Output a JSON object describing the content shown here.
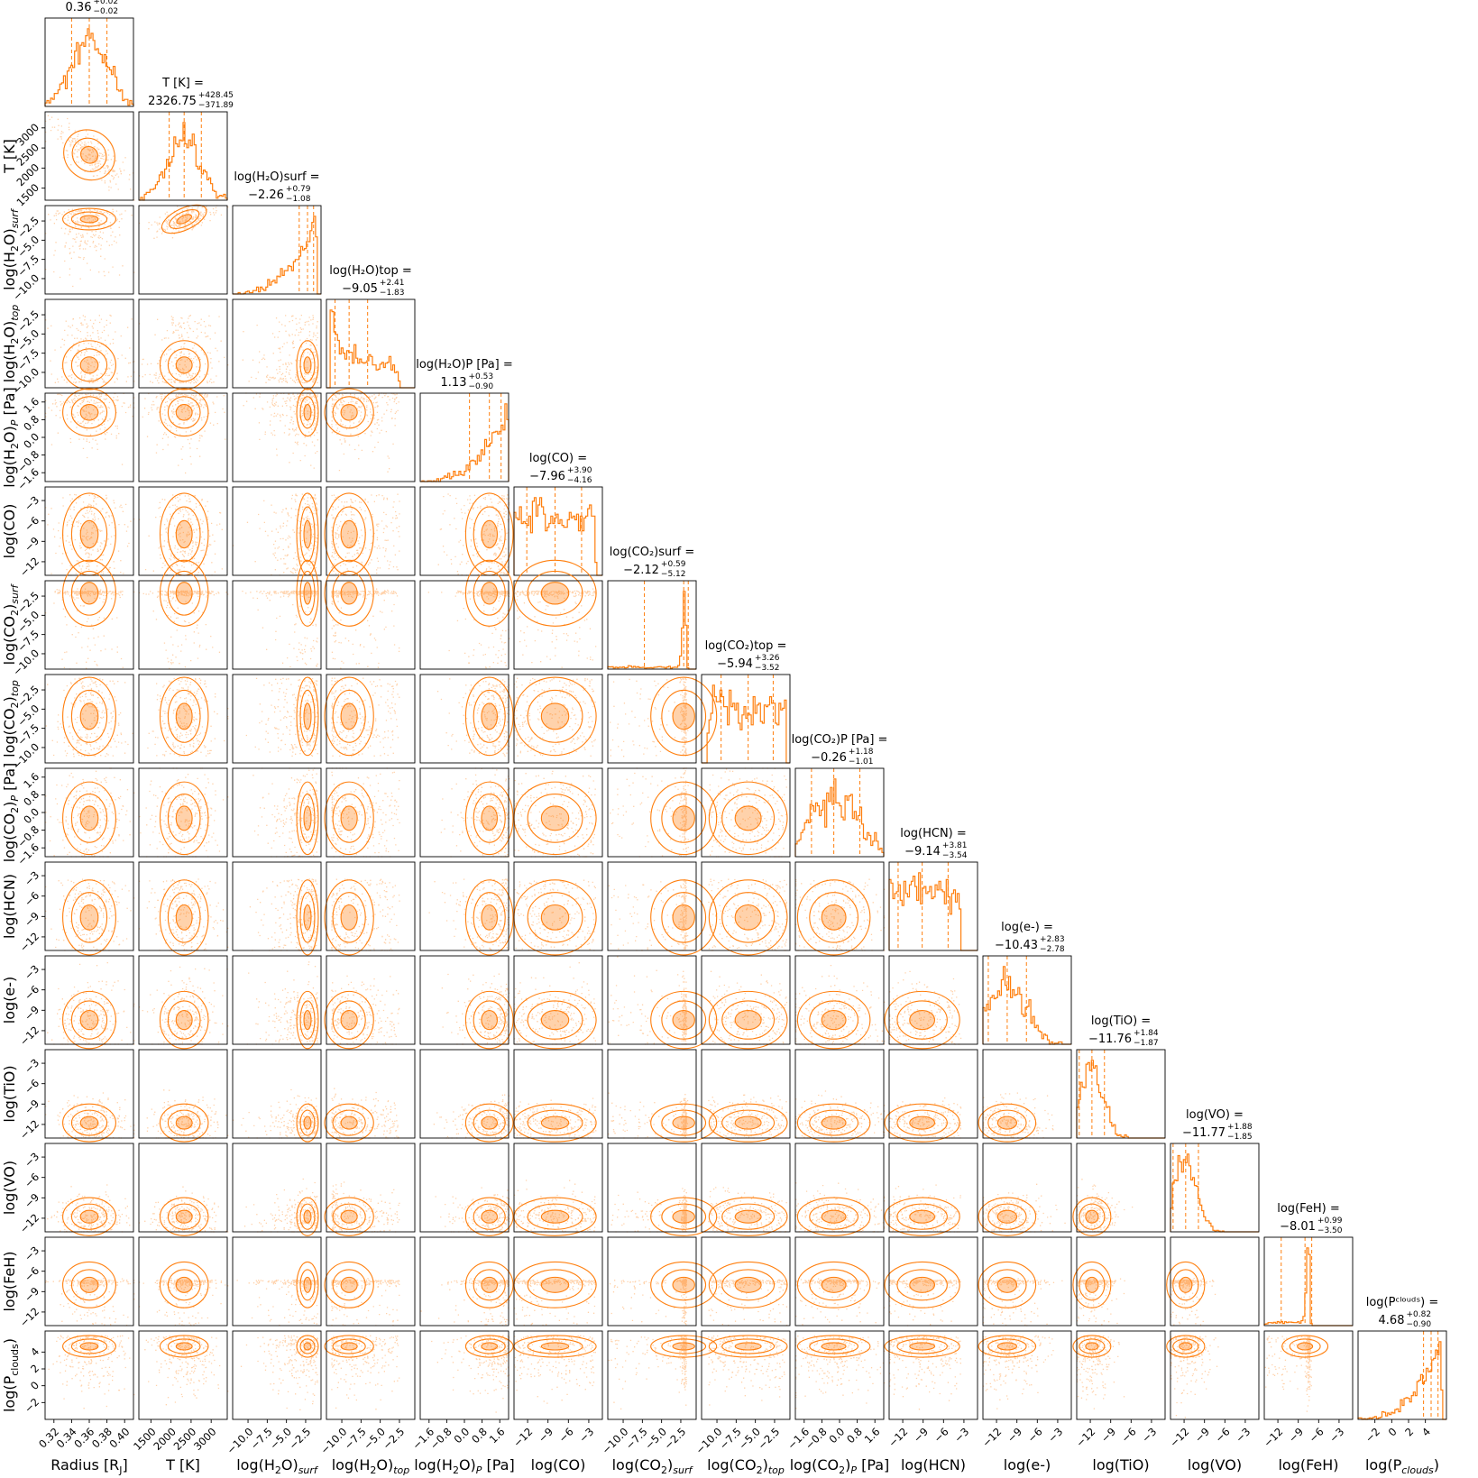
{
  "accent_color": "#ff7f0e",
  "chart_data": {
    "type": "corner",
    "grid": false,
    "legend": "none",
    "parameters": [
      {
        "axis_label": "Radius [R$_J$]",
        "axis_label_main": "Radius [R",
        "axis_label_sub": "J",
        "axis_label_tail": "]",
        "title_name": "",
        "median": "0.36",
        "err_plus": "+0.02",
        "err_minus": "−0.02",
        "range": [
          0.31,
          0.41
        ],
        "ticks": [
          "0.32",
          "0.34",
          "0.36",
          "0.38",
          "0.40"
        ],
        "tick_values": [
          0.32,
          0.34,
          0.36,
          0.38,
          0.4
        ],
        "q16": 0.34,
        "q50": 0.36,
        "q84": 0.38,
        "hist_shape": "flat-gaussian",
        "corr_with_T": -0.8
      },
      {
        "axis_label": "T [K]",
        "axis_label_main": "T [K]",
        "axis_label_sub": "",
        "axis_label_tail": "",
        "title_name": "T [K] =",
        "median": "2326.75",
        "err_plus": "+428.45",
        "err_minus": "−371.89",
        "range": [
          1200,
          3400
        ],
        "ticks": [
          "1500",
          "2000",
          "2500",
          "3000"
        ],
        "tick_values": [
          1500,
          2000,
          2500,
          3000
        ],
        "q16": 1955,
        "q50": 2327,
        "q84": 2755,
        "hist_shape": "gaussian"
      },
      {
        "axis_label": "log(H$_2$O)$_{surf}$",
        "axis_label_main": "log(H",
        "axis_label_sub": "2",
        "axis_label_tail": "O)",
        "axis_label_sub2": "surf",
        "title_name": "log(H₂O)surf =",
        "median": "−2.26",
        "err_plus": "+0.79",
        "err_minus": "−1.08",
        "range": [
          -12,
          -0.5
        ],
        "ticks": [
          "−10.0",
          "−7.5",
          "−5.0",
          "−2.5"
        ],
        "tick_values": [
          -10,
          -7.5,
          -5,
          -2.5
        ],
        "q16": -3.34,
        "q50": -2.26,
        "q84": -1.47,
        "hist_shape": "rising-right"
      },
      {
        "axis_label": "log(H$_2$O)$_{top}$",
        "axis_label_main": "log(H",
        "axis_label_sub": "2",
        "axis_label_tail": "O)",
        "axis_label_sub2": "top",
        "title_name": "log(H₂O)top =",
        "median": "−9.05",
        "err_plus": "+2.41",
        "err_minus": "−1.83",
        "range": [
          -12,
          -0.5
        ],
        "ticks": [
          "−10.0",
          "−7.5",
          "−5.0",
          "−2.5"
        ],
        "tick_values": [
          -10,
          -7.5,
          -5,
          -2.5
        ],
        "q16": -10.88,
        "q50": -9.05,
        "q84": -6.64,
        "hist_shape": "falling-left"
      },
      {
        "axis_label": "log(H$_2$O)$_P$ [Pa]",
        "axis_label_main": "log(H",
        "axis_label_sub": "2",
        "axis_label_tail": "O)",
        "axis_label_sub2": "P",
        "axis_label_end": " [Pa]",
        "title_name": "log(H₂O)P [Pa] =",
        "median": "1.13",
        "err_plus": "+0.53",
        "err_minus": "−0.90",
        "range": [
          -2,
          2
        ],
        "ticks": [
          "−1.6",
          "−0.8",
          "0.0",
          "0.8",
          "1.6"
        ],
        "tick_values": [
          -1.6,
          -0.8,
          0,
          0.8,
          1.6
        ],
        "q16": 0.23,
        "q50": 1.13,
        "q84": 1.66,
        "hist_shape": "rising-right"
      },
      {
        "axis_label": "log(CO)",
        "axis_label_main": "log(CO)",
        "axis_label_sub": "",
        "axis_label_tail": "",
        "title_name": "log(CO) =",
        "median": "−7.96",
        "err_plus": "+3.90",
        "err_minus": "−4.16",
        "range": [
          -14,
          -1
        ],
        "ticks": [
          "−12",
          "−9",
          "−6",
          "−3"
        ],
        "tick_values": [
          -12,
          -9,
          -6,
          -3
        ],
        "q16": -12.12,
        "q50": -7.96,
        "q84": -4.06,
        "hist_shape": "flat"
      },
      {
        "axis_label": "log(CO$_2$)$_{surf}$",
        "axis_label_main": "log(CO",
        "axis_label_sub": "2",
        "axis_label_tail": ")",
        "axis_label_sub2": "surf",
        "title_name": "log(CO₂)surf =",
        "median": "−2.12",
        "err_plus": "+0.59",
        "err_minus": "−5.12",
        "range": [
          -12,
          -0.5
        ],
        "ticks": [
          "−10.0",
          "−7.5",
          "−5.0",
          "−2.5"
        ],
        "tick_values": [
          -10,
          -7.5,
          -5,
          -2.5
        ],
        "q16": -7.24,
        "q50": -2.12,
        "q84": -1.53,
        "hist_shape": "spike-right"
      },
      {
        "axis_label": "log(CO$_2$)$_{top}$",
        "axis_label_main": "log(CO",
        "axis_label_sub": "2",
        "axis_label_tail": ")",
        "axis_label_sub2": "top",
        "title_name": "log(CO₂)top =",
        "median": "−5.94",
        "err_plus": "+3.26",
        "err_minus": "−3.52",
        "range": [
          -12,
          -0.5
        ],
        "ticks": [
          "−10.0",
          "−7.5",
          "−5.0",
          "−2.5"
        ],
        "tick_values": [
          -10,
          -7.5,
          -5,
          -2.5
        ],
        "q16": -9.46,
        "q50": -5.94,
        "q84": -2.68,
        "hist_shape": "flat"
      },
      {
        "axis_label": "log(CO$_2$)$_P$ [Pa]",
        "axis_label_main": "log(CO",
        "axis_label_sub": "2",
        "axis_label_tail": ")",
        "axis_label_sub2": "P",
        "axis_label_end": " [Pa]",
        "title_name": "log(CO₂)P [Pa] =",
        "median": "−0.26",
        "err_plus": "+1.18",
        "err_minus": "−1.01",
        "range": [
          -2,
          2
        ],
        "ticks": [
          "−1.6",
          "−0.8",
          "0.0",
          "0.8",
          "1.6"
        ],
        "tick_values": [
          -1.6,
          -0.8,
          0,
          0.8,
          1.6
        ],
        "q16": -1.27,
        "q50": -0.26,
        "q84": 0.92,
        "hist_shape": "broad"
      },
      {
        "axis_label": "log(HCN)",
        "axis_label_main": "log(HCN)",
        "axis_label_sub": "",
        "axis_label_tail": "",
        "title_name": "log(HCN) =",
        "median": "−9.14",
        "err_plus": "+3.81",
        "err_minus": "−3.54",
        "range": [
          -14,
          -1
        ],
        "ticks": [
          "−12",
          "−9",
          "−6",
          "−3"
        ],
        "tick_values": [
          -12,
          -9,
          -6,
          -3
        ],
        "q16": -12.68,
        "q50": -9.14,
        "q84": -5.33,
        "hist_shape": "flat"
      },
      {
        "axis_label": "log(e-)",
        "axis_label_main": "log(e-)",
        "axis_label_sub": "",
        "axis_label_tail": "",
        "title_name": "log(e-) =",
        "median": "−10.43",
        "err_plus": "+2.83",
        "err_minus": "−2.78",
        "range": [
          -14,
          -1
        ],
        "ticks": [
          "−12",
          "−9",
          "−6",
          "−3"
        ],
        "tick_values": [
          -12,
          -9,
          -6,
          -3
        ],
        "q16": -13.21,
        "q50": -10.43,
        "q84": -7.6,
        "hist_shape": "broad"
      },
      {
        "axis_label": "log(TiO)",
        "axis_label_main": "log(TiO)",
        "axis_label_sub": "",
        "axis_label_tail": "",
        "title_name": "log(TiO) =",
        "median": "−11.76",
        "err_plus": "+1.84",
        "err_minus": "−1.87",
        "range": [
          -14,
          -1
        ],
        "ticks": [
          "−12",
          "−9",
          "−6",
          "−3"
        ],
        "tick_values": [
          -12,
          -9,
          -6,
          -3
        ],
        "q16": -13.63,
        "q50": -11.76,
        "q84": -9.92,
        "hist_shape": "narrow"
      },
      {
        "axis_label": "log(VO)",
        "axis_label_main": "log(VO)",
        "axis_label_sub": "",
        "axis_label_tail": "",
        "title_name": "log(VO) =",
        "median": "−11.77",
        "err_plus": "+1.88",
        "err_minus": "−1.85",
        "range": [
          -14,
          -1
        ],
        "ticks": [
          "−12",
          "−9",
          "−6",
          "−3"
        ],
        "tick_values": [
          -12,
          -9,
          -6,
          -3
        ],
        "q16": -13.62,
        "q50": -11.77,
        "q84": -9.89,
        "hist_shape": "narrow"
      },
      {
        "axis_label": "log(FeH)",
        "axis_label_main": "log(FeH)",
        "axis_label_sub": "",
        "axis_label_tail": "",
        "title_name": "log(FeH) =",
        "median": "−8.01",
        "err_plus": "+0.99",
        "err_minus": "−3.50",
        "range": [
          -14,
          -1
        ],
        "ticks": [
          "−12",
          "−9",
          "−6",
          "−3"
        ],
        "tick_values": [
          -12,
          -9,
          -6,
          -3
        ],
        "q16": -11.51,
        "q50": -8.01,
        "q84": -7.02,
        "hist_shape": "spike-right"
      },
      {
        "axis_label": "log(P$_{clouds}$)",
        "axis_label_main": "log(P",
        "axis_label_sub": "clouds",
        "axis_label_tail": ")",
        "title_name": "log(Pᶜˡᵒᵘᵈˢ) =",
        "median": "4.68",
        "err_plus": "+0.82",
        "err_minus": "−0.90",
        "range": [
          -4,
          6.5
        ],
        "ticks": [
          "−2",
          "0",
          "2",
          "4"
        ],
        "tick_values": [
          -2,
          0,
          2,
          4
        ],
        "q16": 3.78,
        "q50": 4.68,
        "q84": 5.5,
        "hist_shape": "rising-right"
      }
    ]
  }
}
